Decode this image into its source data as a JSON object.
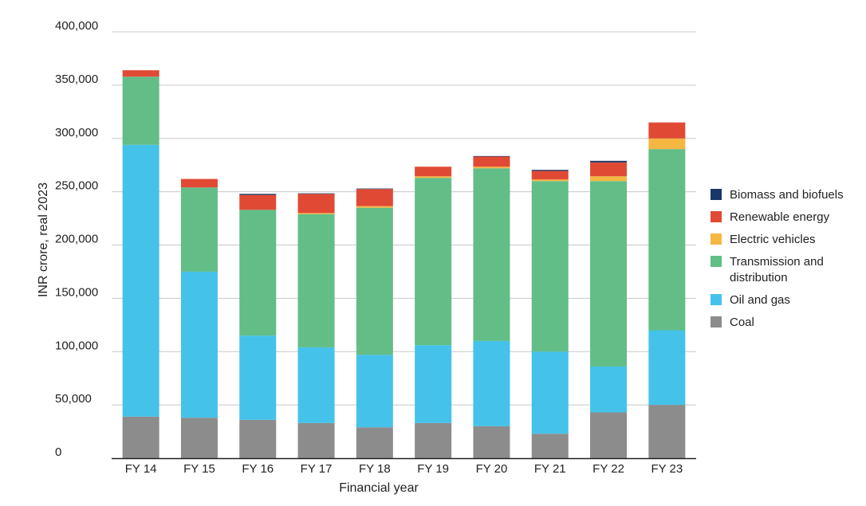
{
  "chart_data": {
    "type": "bar",
    "stacked": true,
    "title": "",
    "xlabel": "Financial year",
    "ylabel": "INR crore, real 2023",
    "ylim": [
      0,
      400000
    ],
    "yticks": [
      0,
      50000,
      100000,
      150000,
      200000,
      250000,
      300000,
      350000,
      400000
    ],
    "ytick_labels": [
      "0",
      "50,000",
      "100,000",
      "150,000",
      "200,000",
      "250,000",
      "300,000",
      "350,000",
      "400,000"
    ],
    "grid": true,
    "legend_position": "right",
    "categories": [
      "FY 14",
      "FY 15",
      "FY 16",
      "FY 17",
      "FY 18",
      "FY 19",
      "FY 20",
      "FY 21",
      "FY 22",
      "FY 23"
    ],
    "series": [
      {
        "name": "Coal",
        "color": "#8c8c8c",
        "values": [
          39000,
          38000,
          36000,
          33000,
          29000,
          33000,
          30000,
          23000,
          43000,
          50000
        ]
      },
      {
        "name": "Oil and gas",
        "color": "#44c2ea",
        "values": [
          255000,
          137000,
          79000,
          71000,
          68000,
          73000,
          80000,
          77000,
          43000,
          70000
        ]
      },
      {
        "name": "Transmission and distribution",
        "color": "#62bd87",
        "values": [
          64000,
          79000,
          118000,
          125000,
          138000,
          157000,
          162000,
          160000,
          174000,
          170000
        ]
      },
      {
        "name": "Electric vehicles",
        "color": "#f5b642",
        "values": [
          0,
          0,
          0,
          1000,
          1500,
          1500,
          1500,
          1500,
          4500,
          10000
        ]
      },
      {
        "name": "Renewable energy",
        "color": "#e04a35",
        "values": [
          6000,
          8000,
          14000,
          18000,
          16000,
          9000,
          9500,
          8000,
          13000,
          15000
        ]
      },
      {
        "name": "Biomass and biofuels",
        "color": "#1a3668",
        "values": [
          0,
          0,
          1000,
          500,
          500,
          0,
          500,
          1000,
          1500,
          0
        ]
      }
    ],
    "legend_order": [
      "Biomass and biofuels",
      "Renewable energy",
      "Electric vehicles",
      "Transmission and distribution",
      "Oil and gas",
      "Coal"
    ]
  }
}
